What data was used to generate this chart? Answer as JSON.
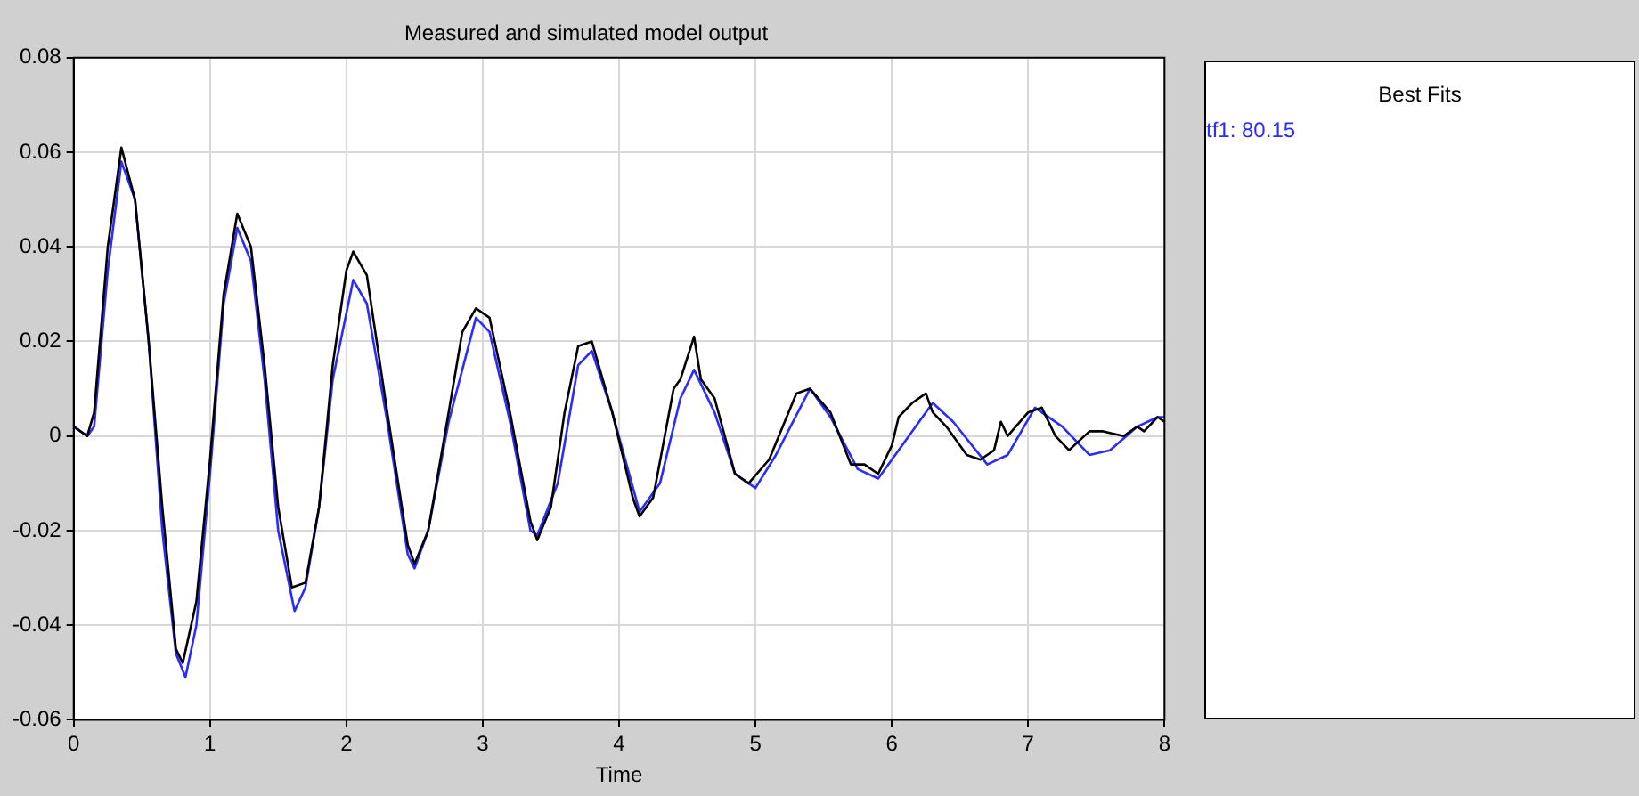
{
  "chart_data": {
    "type": "line",
    "title": "Measured and simulated model output",
    "xlabel": "Time",
    "legend_title": "Best Fits",
    "legend": "right",
    "grid": true,
    "marker": "none",
    "xlim": [
      0,
      8
    ],
    "ylim": [
      -0.06,
      0.08
    ],
    "xticks": [
      0,
      1,
      2,
      3,
      4,
      5,
      6,
      7,
      8
    ],
    "yticks": [
      -0.06,
      -0.04,
      -0.02,
      0,
      0.02,
      0.04,
      0.06,
      0.08
    ],
    "series": [
      {
        "color": "#000000",
        "x": [
          0,
          0.1,
          0.15,
          0.25,
          0.35,
          0.45,
          0.55,
          0.65,
          0.75,
          0.8,
          0.9,
          1.0,
          1.1,
          1.2,
          1.3,
          1.4,
          1.5,
          1.6,
          1.7,
          1.8,
          1.9,
          2.0,
          2.05,
          2.15,
          2.3,
          2.45,
          2.5,
          2.6,
          2.75,
          2.85,
          2.95,
          3.05,
          3.2,
          3.35,
          3.4,
          3.5,
          3.6,
          3.7,
          3.8,
          3.95,
          4.1,
          4.15,
          4.25,
          4.4,
          4.45,
          4.55,
          4.6,
          4.7,
          4.85,
          4.95,
          5.1,
          5.3,
          5.4,
          5.55,
          5.7,
          5.8,
          5.9,
          6.0,
          6.05,
          6.15,
          6.25,
          6.3,
          6.4,
          6.55,
          6.65,
          6.75,
          6.8,
          6.85,
          7.0,
          7.1,
          7.2,
          7.3,
          7.45,
          7.55,
          7.7,
          7.8,
          7.85,
          7.95,
          8.0
        ],
        "values": [
          0.002,
          0,
          0.005,
          0.04,
          0.061,
          0.05,
          0.02,
          -0.015,
          -0.045,
          -0.048,
          -0.035,
          -0.005,
          0.03,
          0.047,
          0.04,
          0.015,
          -0.015,
          -0.032,
          -0.031,
          -0.015,
          0.015,
          0.035,
          0.039,
          0.034,
          0.005,
          -0.023,
          -0.027,
          -0.02,
          0.005,
          0.022,
          0.027,
          0.025,
          0.005,
          -0.018,
          -0.022,
          -0.015,
          0.005,
          0.019,
          0.02,
          0.005,
          -0.013,
          -0.017,
          -0.013,
          0.01,
          0.012,
          0.021,
          0.012,
          0.008,
          -0.008,
          -0.01,
          -0.005,
          0.009,
          0.01,
          0.005,
          -0.006,
          -0.006,
          -0.008,
          -0.002,
          0.004,
          0.007,
          0.009,
          0.005,
          0.002,
          -0.004,
          -0.005,
          -0.003,
          0.003,
          0,
          0.005,
          0.006,
          0,
          -0.003,
          0.001,
          0.001,
          0,
          0.002,
          0.001,
          0.004,
          0.003
        ]
      },
      {
        "name": "tf1: 80.15",
        "color": "#2b2bff",
        "x": [
          0,
          0.1,
          0.15,
          0.25,
          0.35,
          0.45,
          0.55,
          0.65,
          0.75,
          0.82,
          0.9,
          1.0,
          1.1,
          1.2,
          1.3,
          1.4,
          1.5,
          1.62,
          1.7,
          1.8,
          1.9,
          2.05,
          2.15,
          2.3,
          2.45,
          2.5,
          2.6,
          2.75,
          2.95,
          3.05,
          3.2,
          3.35,
          3.4,
          3.55,
          3.7,
          3.8,
          3.95,
          4.15,
          4.3,
          4.45,
          4.55,
          4.7,
          4.85,
          5.0,
          5.15,
          5.4,
          5.55,
          5.75,
          5.9,
          6.1,
          6.3,
          6.45,
          6.7,
          6.85,
          7.05,
          7.25,
          7.45,
          7.6,
          7.8,
          7.95,
          8.0
        ],
        "values": [
          0.002,
          0,
          0.002,
          0.035,
          0.058,
          0.05,
          0.02,
          -0.02,
          -0.046,
          -0.051,
          -0.04,
          -0.008,
          0.028,
          0.044,
          0.037,
          0.012,
          -0.02,
          -0.037,
          -0.032,
          -0.015,
          0.012,
          0.033,
          0.028,
          0.003,
          -0.025,
          -0.028,
          -0.02,
          0.003,
          0.025,
          0.022,
          0.003,
          -0.02,
          -0.021,
          -0.01,
          0.015,
          0.018,
          0.005,
          -0.016,
          -0.01,
          0.008,
          0.014,
          0.005,
          -0.008,
          -0.011,
          -0.004,
          0.01,
          0.004,
          -0.007,
          -0.009,
          -0.001,
          0.007,
          0.003,
          -0.006,
          -0.004,
          0.006,
          0.002,
          -0.004,
          -0.003,
          0.002,
          0.004,
          0.004
        ]
      }
    ]
  }
}
